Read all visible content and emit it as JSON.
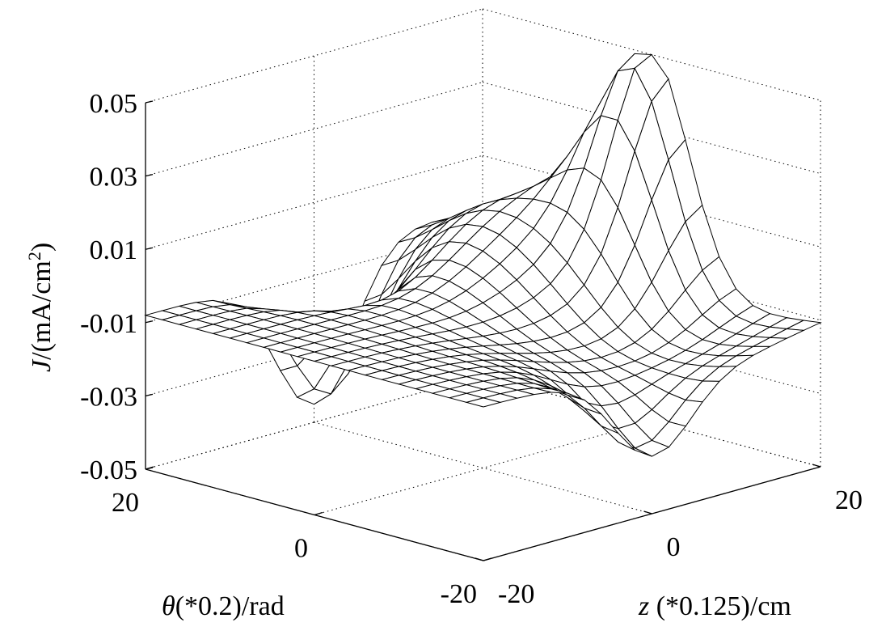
{
  "chart_data": {
    "type": "mesh-surface",
    "title": "",
    "xlabel": {
      "symbol": "θ",
      "text": "(*0.2)/rad"
    },
    "ylabel": {
      "symbol": "z",
      "text": " (*0.125)/cm"
    },
    "zlabel": {
      "symbol": "J",
      "text": "/(mA/cm",
      "sup": "2",
      "close": ")"
    },
    "xlim": [
      -20,
      20
    ],
    "ylim": [
      -20,
      20
    ],
    "zlim": [
      -0.05,
      0.05
    ],
    "x_ticks": [
      "20",
      "0",
      "-20"
    ],
    "y_ticks": [
      "-20",
      "0",
      "20"
    ],
    "z_ticks": [
      "0.05",
      "0.03",
      "0.01",
      "-0.01",
      "-0.03",
      "-0.05"
    ],
    "grid": true,
    "surface": {
      "grid_size": 21,
      "description_features": [
        {
          "at": [
            0,
            20
          ],
          "value": 0.05,
          "kind": "peak"
        },
        {
          "at": [
            20,
            0
          ],
          "value": -0.045,
          "kind": "trough"
        },
        {
          "at": [
            -20,
            0
          ],
          "value": -0.03,
          "kind": "trough"
        },
        {
          "at": [
            0,
            -20
          ],
          "value": -0.008,
          "kind": "edge"
        }
      ],
      "baseline": -0.008
    }
  }
}
